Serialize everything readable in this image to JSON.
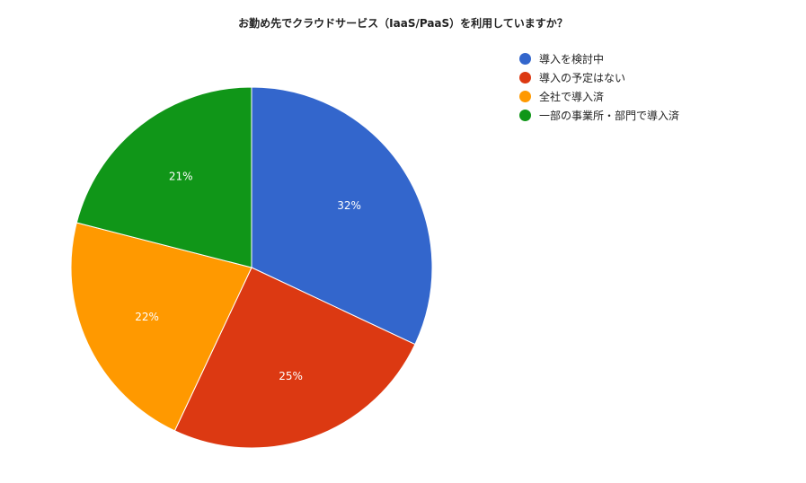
{
  "chart_data": {
    "type": "pie",
    "title": "お勤め先でクラウドサービス（IaaS/PaaS）を利用していますか？",
    "slices": [
      {
        "label": "導入を検討中",
        "value": 32,
        "display": "32%",
        "color": "#3366cc"
      },
      {
        "label": "導入の予定はない",
        "value": 25,
        "display": "25%",
        "color": "#dc3912"
      },
      {
        "label": "全社で導入済",
        "value": 22,
        "display": "22%",
        "color": "#ff9900"
      },
      {
        "label": "一部の事業所・部門で導入済",
        "value": 21,
        "display": "21%",
        "color": "#109618"
      }
    ],
    "legend_position": "top-right"
  }
}
